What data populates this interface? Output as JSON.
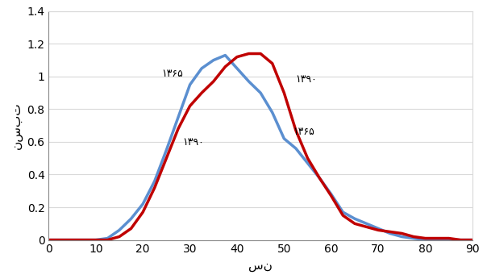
{
  "chart_data": {
    "type": "line",
    "x_label": "سن",
    "y_label": "نسبت",
    "x": [
      0,
      2.5,
      5,
      7.5,
      10,
      12.5,
      15,
      17.5,
      20,
      22.5,
      25,
      27.5,
      30,
      32.5,
      35,
      37.5,
      40,
      42.5,
      45,
      47.5,
      50,
      52.5,
      55,
      57.5,
      60,
      62.5,
      65,
      67.5,
      70,
      72.5,
      75,
      77.5,
      80,
      82.5,
      85,
      87.5,
      90
    ],
    "series": [
      {
        "name": "۱۳۶۵",
        "color": "#5b8fd0",
        "values": [
          0,
          0,
          0,
          0,
          0,
          0.01,
          0.06,
          0.13,
          0.22,
          0.36,
          0.55,
          0.75,
          0.95,
          1.05,
          1.1,
          1.13,
          1.05,
          0.97,
          0.9,
          0.78,
          0.62,
          0.56,
          0.47,
          0.38,
          0.28,
          0.17,
          0.13,
          0.1,
          0.07,
          0.04,
          0.02,
          0.01,
          0,
          0,
          0,
          0,
          0
        ]
      },
      {
        "name": "۱۳۹۰",
        "color": "#c00000",
        "values": [
          0,
          0,
          0,
          0,
          0,
          0,
          0.02,
          0.07,
          0.17,
          0.32,
          0.5,
          0.68,
          0.82,
          0.9,
          0.97,
          1.06,
          1.12,
          1.14,
          1.14,
          1.08,
          0.9,
          0.67,
          0.5,
          0.38,
          0.27,
          0.15,
          0.1,
          0.08,
          0.06,
          0.05,
          0.04,
          0.02,
          0.01,
          0.01,
          0.01,
          0,
          0
        ]
      }
    ],
    "xlim": [
      0,
      90
    ],
    "xticks": [
      0,
      10,
      20,
      30,
      40,
      50,
      60,
      70,
      80,
      90
    ],
    "ylim": [
      0,
      1.4
    ],
    "yticks": [
      0,
      0.2,
      0.4,
      0.6,
      0.8,
      1,
      1.2,
      1.4
    ],
    "grid": true
  }
}
